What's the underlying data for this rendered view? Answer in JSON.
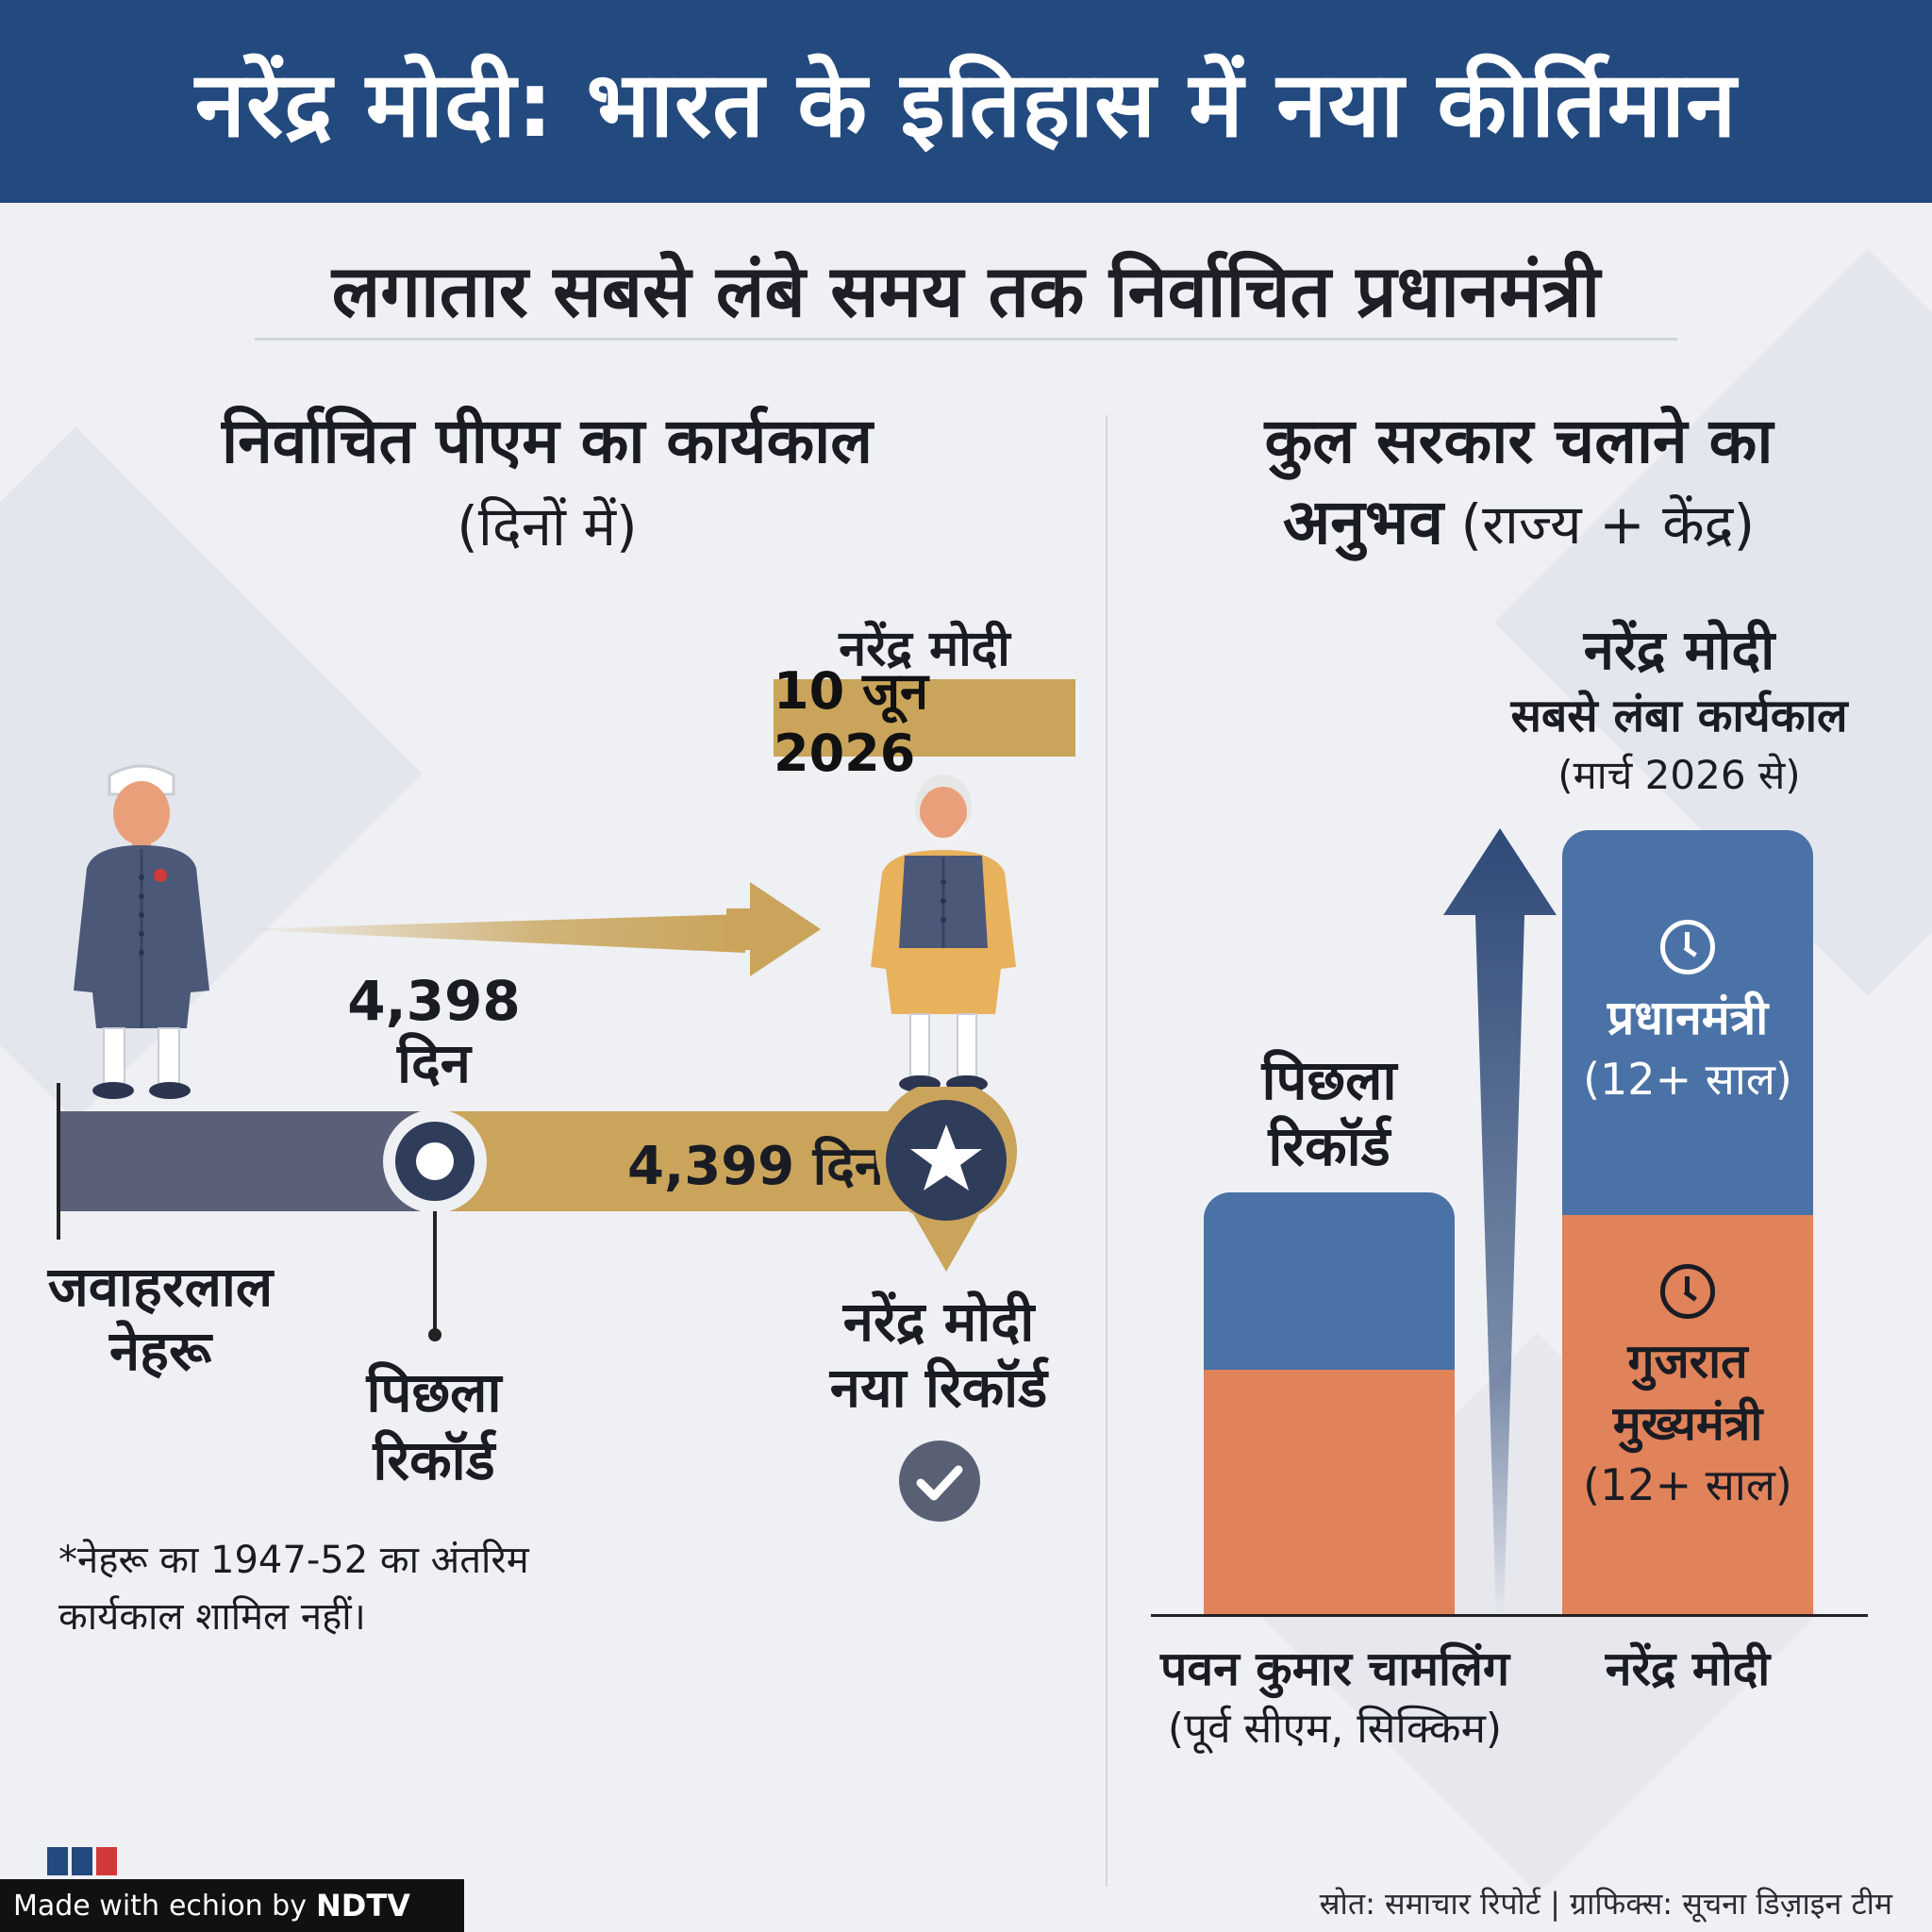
{
  "header": {
    "title": "नरेंद्र मोदी: भारत के इतिहास में नया कीर्तिमान"
  },
  "subtitle": "लगातार सबसे लंबे समय तक निर्वाचित प्रधानमंत्री",
  "left_section": {
    "title": "निर्वाचित पीएम का कार्यकाल",
    "subtitle": "(दिनों में)",
    "modi_name": "नरेंद्र मोदी",
    "modi_date": "10 जून 2026",
    "nehru_days": "4,398",
    "nehru_days_unit": "दिन",
    "modi_days": "4,399 दिन",
    "nehru_name_line1": "जवाहरलाल",
    "nehru_name_line2": "नेहरू",
    "prev_record_line1": "पिछला",
    "prev_record_line2": "रिकॉर्ड",
    "new_record_line1": "नरेंद्र मोदी",
    "new_record_line2": "नया रिकॉर्ड",
    "note_line1": "*नेहरू का 1947-52 का अंतरिम",
    "note_line2": "कार्यकाल शामिल नहीं।",
    "colors": {
      "nehru_track": "#5b6078",
      "modi_track": "#c9a45a",
      "badge": "#2f3c5a"
    }
  },
  "right_section": {
    "title_line1": "कुल सरकार चलाने का",
    "title_line2_bold": "अनुभव",
    "title_line2_rest": " (राज्य + केंद्र)",
    "modi_name": "नरेंद्र मोदी",
    "modi_caption": "सबसे लंबा कार्यकाल",
    "modi_since": "(मार्च 2026 से)",
    "prev_record_line1": "पिछला",
    "prev_record_line2": "रिकॉर्ड",
    "pm_label": "प्रधानमंत्री",
    "pm_years": "(12+ साल)",
    "cm_label_line1": "गुजरात",
    "cm_label_line2": "मुख्यमंत्री",
    "cm_years": "(12+ साल)",
    "chamling_name": "पवन कुमार चामलिंग",
    "chamling_sub": "(पूर्व सीएम, सिक्किम)",
    "modi_bar_label": "नरेंद्र मोदी",
    "colors": {
      "central": "#4a72a6",
      "state": "#e0825a"
    }
  },
  "footer": {
    "made_with": "Made with",
    "echion": "echion by",
    "ndtv": "NDTV",
    "source": "स्रोत: समाचार रिपोर्ट | ग्राफिक्स: सूचना डिज़ाइन टीम"
  }
}
